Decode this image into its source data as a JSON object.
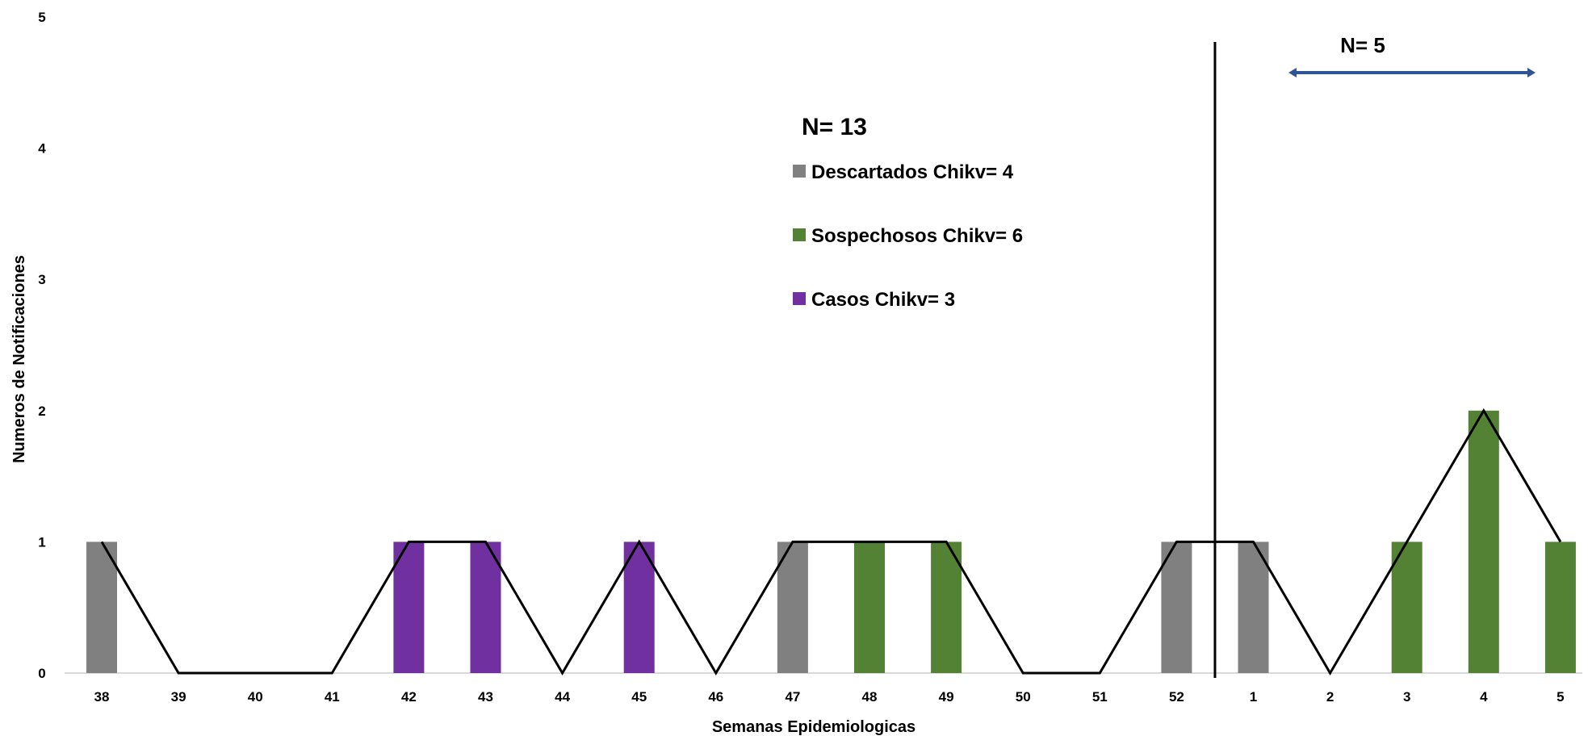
{
  "chart_data": {
    "type": "bar",
    "xlabel": "Semanas Epidemiologicas",
    "ylabel": "Numeros de Notificaciones",
    "ylim": [
      0,
      5
    ],
    "yticks": [
      0,
      1,
      2,
      3,
      4,
      5
    ],
    "grid": false,
    "categories": [
      "38",
      "39",
      "40",
      "41",
      "42",
      "43",
      "44",
      "45",
      "46",
      "47",
      "48",
      "49",
      "50",
      "51",
      "52",
      "1",
      "2",
      "3",
      "4",
      "5"
    ],
    "series": [
      {
        "name": "Descartados Chikv= 4",
        "color": "#808080",
        "values": [
          1,
          0,
          0,
          0,
          0,
          0,
          0,
          0,
          0,
          1,
          0,
          0,
          0,
          0,
          1,
          1,
          0,
          0,
          0,
          0
        ]
      },
      {
        "name": "Sospechosos Chikv= 6",
        "color": "#548235",
        "values": [
          0,
          0,
          0,
          0,
          0,
          0,
          0,
          0,
          0,
          0,
          1,
          1,
          0,
          0,
          0,
          0,
          0,
          1,
          2,
          1
        ]
      },
      {
        "name": "Casos Chikv= 3",
        "color": "#7030A0",
        "values": [
          0,
          0,
          0,
          0,
          1,
          1,
          0,
          1,
          0,
          0,
          0,
          0,
          0,
          0,
          0,
          0,
          0,
          0,
          0,
          0
        ]
      }
    ],
    "line": {
      "color": "#000000",
      "values": [
        1,
        0,
        0,
        0,
        1,
        1,
        0,
        1,
        0,
        1,
        1,
        1,
        0,
        0,
        1,
        1,
        0,
        1,
        2,
        1
      ]
    },
    "legend": {
      "title": "N= 13",
      "placement": "top-center"
    },
    "annotations": {
      "divider_after_category": "52",
      "range_label": "N= 5",
      "range_arrow_color": "#2F5597"
    }
  }
}
